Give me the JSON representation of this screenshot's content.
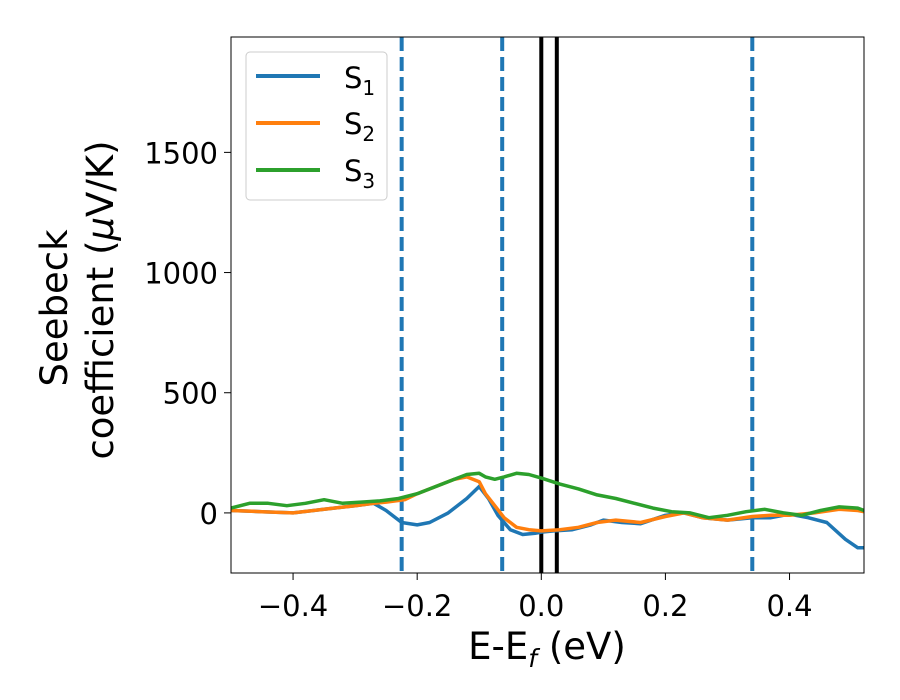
{
  "chart_data": {
    "type": "line",
    "xlabel": {
      "main": "E-E",
      "sub": "f",
      "suffix": " (eV)"
    },
    "ylabel": {
      "line1": "Seebeck",
      "line2": "coefficient  (",
      "mu": "μ",
      "line2_end": "V/K)"
    },
    "xlim": [
      -0.5,
      0.52
    ],
    "ylim": [
      -250,
      1980
    ],
    "xticks": [
      -0.4,
      -0.2,
      0.0,
      0.2,
      0.4
    ],
    "xtick_labels": [
      "−0.4",
      "−0.2",
      "0.0",
      "0.2",
      "0.4"
    ],
    "yticks": [
      0,
      500,
      1000,
      1500
    ],
    "ytick_labels": [
      "0",
      "500",
      "1000",
      "1500"
    ],
    "grid": false,
    "legend_position": "top-left",
    "series": [
      {
        "name": "S",
        "sub": "1",
        "color": "#1f77b4",
        "x": [
          -0.5,
          -0.45,
          -0.4,
          -0.35,
          -0.3,
          -0.27,
          -0.25,
          -0.225,
          -0.2,
          -0.18,
          -0.15,
          -0.12,
          -0.1,
          -0.085,
          -0.07,
          -0.05,
          -0.03,
          -0.01,
          0.0,
          0.02,
          0.05,
          0.08,
          0.1,
          0.13,
          0.16,
          0.2,
          0.23,
          0.26,
          0.3,
          0.34,
          0.37,
          0.4,
          0.43,
          0.46,
          0.49,
          0.51,
          0.52
        ],
        "y": [
          10,
          5,
          0,
          15,
          30,
          40,
          10,
          -40,
          -50,
          -40,
          0,
          60,
          110,
          60,
          -10,
          -70,
          -90,
          -85,
          -80,
          -75,
          -70,
          -50,
          -30,
          -40,
          -45,
          -10,
          0,
          -20,
          -30,
          -20,
          -20,
          -5,
          -20,
          -40,
          -110,
          -145,
          -145
        ]
      },
      {
        "name": "S",
        "sub": "2",
        "color": "#ff7f0e",
        "x": [
          -0.5,
          -0.45,
          -0.4,
          -0.35,
          -0.3,
          -0.27,
          -0.25,
          -0.22,
          -0.2,
          -0.17,
          -0.14,
          -0.12,
          -0.1,
          -0.09,
          -0.075,
          -0.06,
          -0.04,
          -0.02,
          0.0,
          0.03,
          0.06,
          0.09,
          0.12,
          0.16,
          0.2,
          0.23,
          0.26,
          0.3,
          0.34,
          0.37,
          0.4,
          0.44,
          0.48,
          0.51,
          0.52
        ],
        "y": [
          10,
          5,
          0,
          15,
          30,
          40,
          45,
          55,
          80,
          110,
          140,
          150,
          130,
          80,
          30,
          -20,
          -60,
          -70,
          -75,
          -70,
          -60,
          -40,
          -30,
          -40,
          -15,
          0,
          -20,
          -30,
          -15,
          -10,
          -10,
          0,
          15,
          10,
          5
        ]
      },
      {
        "name": "S",
        "sub": "3",
        "color": "#2ca02c",
        "x": [
          -0.5,
          -0.47,
          -0.44,
          -0.41,
          -0.38,
          -0.35,
          -0.32,
          -0.29,
          -0.26,
          -0.23,
          -0.2,
          -0.17,
          -0.14,
          -0.12,
          -0.1,
          -0.09,
          -0.075,
          -0.06,
          -0.04,
          -0.02,
          0.0,
          0.03,
          0.06,
          0.09,
          0.12,
          0.15,
          0.18,
          0.21,
          0.24,
          0.27,
          0.3,
          0.33,
          0.36,
          0.39,
          0.42,
          0.45,
          0.48,
          0.51,
          0.52
        ],
        "y": [
          20,
          40,
          40,
          30,
          40,
          55,
          40,
          45,
          50,
          60,
          80,
          110,
          140,
          160,
          165,
          150,
          140,
          150,
          165,
          160,
          145,
          120,
          100,
          75,
          60,
          40,
          20,
          5,
          0,
          -20,
          -10,
          5,
          15,
          0,
          -10,
          10,
          25,
          20,
          10
        ]
      }
    ],
    "vlines": [
      {
        "x": -0.225,
        "style": "dashed",
        "color": "#1f77b4"
      },
      {
        "x": -0.063,
        "style": "dashed",
        "color": "#1f77b4"
      },
      {
        "x": 0.0,
        "style": "solid",
        "color": "#000000"
      },
      {
        "x": 0.025,
        "style": "solid",
        "color": "#000000"
      },
      {
        "x": 0.34,
        "style": "dashed",
        "color": "#1f77b4"
      }
    ]
  }
}
